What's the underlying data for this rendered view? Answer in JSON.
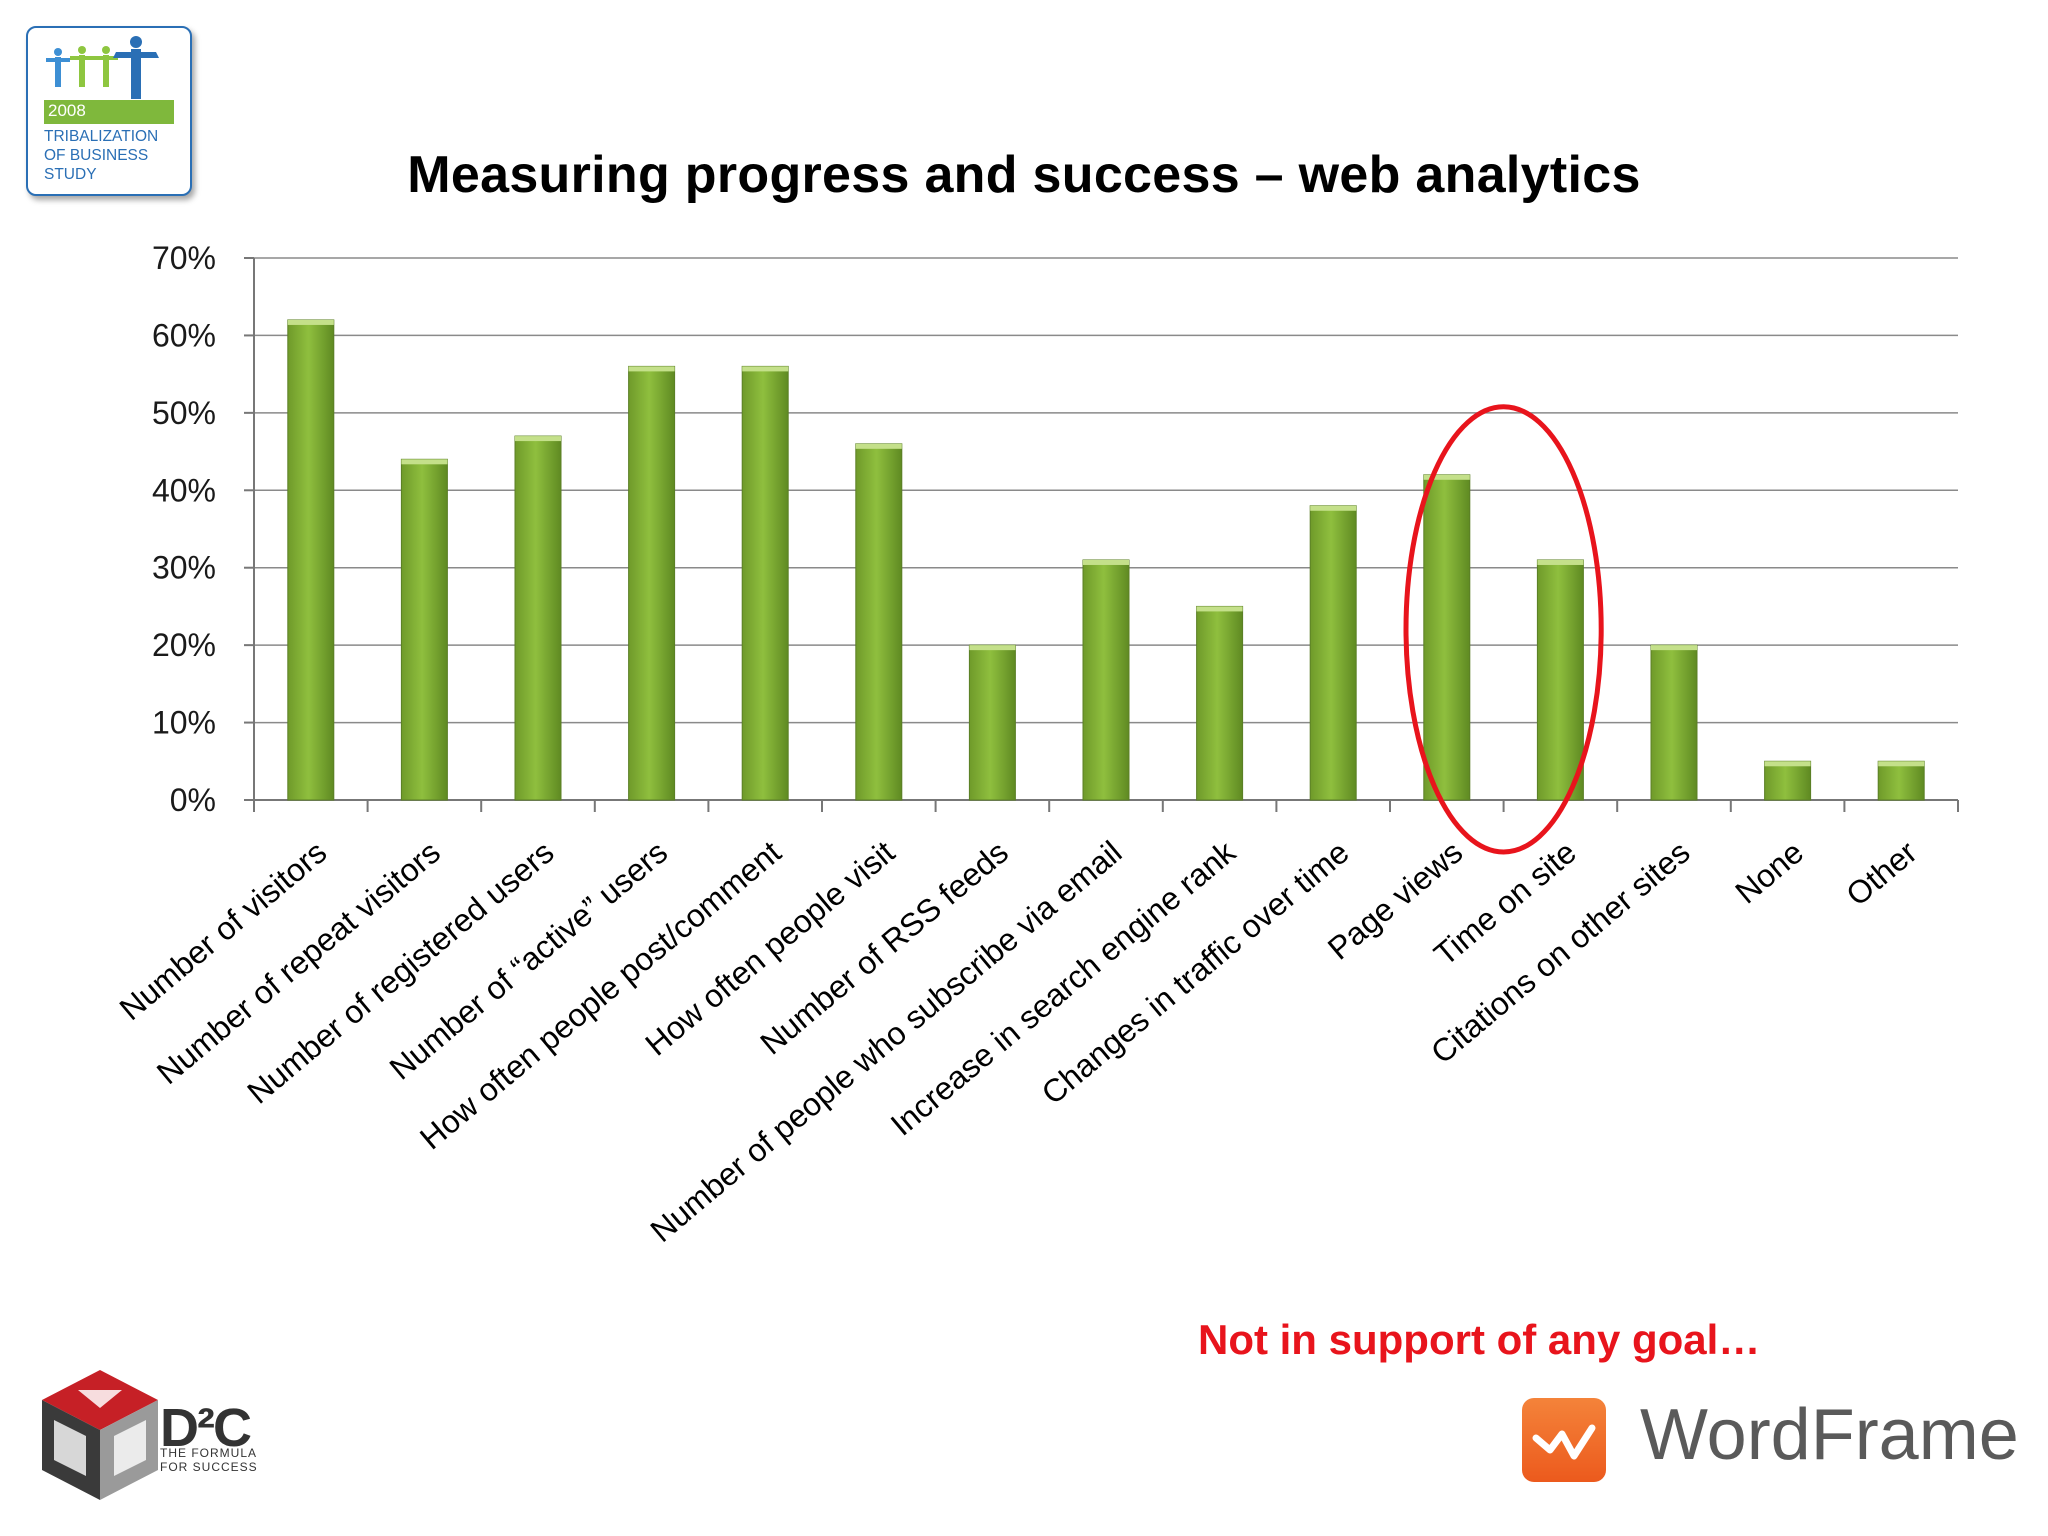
{
  "chart_data": {
    "type": "bar",
    "title": "Measuring progress and success – web analytics",
    "categories": [
      "Number of visitors",
      "Number of repeat visitors",
      "Number of registered users",
      "Number of “active” users",
      "How often people post/comment",
      "How often people visit",
      "Number of RSS feeds",
      "Number of people who subscribe via email",
      "Increase in search engine rank",
      "Changes in traffic over time",
      "Page views",
      "Time on site",
      "Citations on other sites",
      "None",
      "Other"
    ],
    "values": [
      62,
      44,
      47,
      56,
      56,
      46,
      20,
      31,
      25,
      38,
      42,
      31,
      20,
      5,
      5
    ],
    "ylim": [
      0,
      70
    ],
    "yticks": [
      "0%",
      "10%",
      "20%",
      "30%",
      "40%",
      "50%",
      "60%",
      "70%"
    ],
    "grid": true,
    "bar_color": "#8fbf3e",
    "highlight": {
      "categories": [
        "Page views",
        "Time on site"
      ],
      "color": "#e8141c"
    }
  },
  "annotation": "Not in support of any goal…",
  "logos": {
    "study": {
      "year": "2008",
      "lines": [
        "TRIBALIZATION",
        "OF BUSINESS",
        "STUDY"
      ]
    },
    "d2c": {
      "name": "D²C",
      "tagline_1": "THE FORMULA",
      "tagline_2": "FOR SUCCESS"
    },
    "wordframe": {
      "name": "WordFrame",
      "icon": "wordframe-pulse-icon",
      "color": "#ee6a27"
    }
  }
}
